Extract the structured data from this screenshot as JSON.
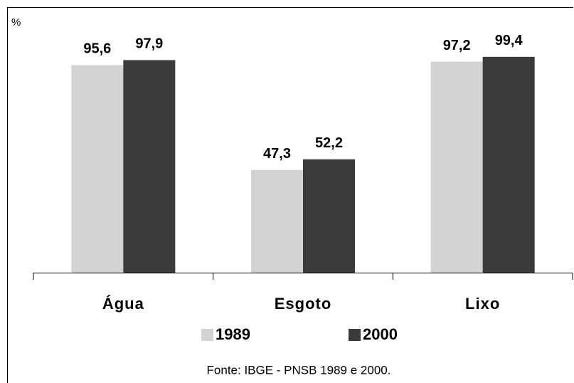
{
  "chart_data": {
    "type": "bar",
    "y_label": "%",
    "categories": [
      "Água",
      "Esgoto",
      "Lixo"
    ],
    "series": [
      {
        "name": "1989",
        "color": "#d3d3d3",
        "values": [
          95.6,
          47.3,
          97.2
        ],
        "value_labels": [
          "95,6",
          "47,3",
          "97,2"
        ]
      },
      {
        "name": "2000",
        "color": "#3a3a3a",
        "values": [
          97.9,
          52.2,
          99.4
        ],
        "value_labels": [
          "97,9",
          "52,2",
          "99,4"
        ]
      }
    ],
    "ylim": [
      0,
      100
    ],
    "source": "Fonte: IBGE - PNSB 1989 e 2000."
  }
}
